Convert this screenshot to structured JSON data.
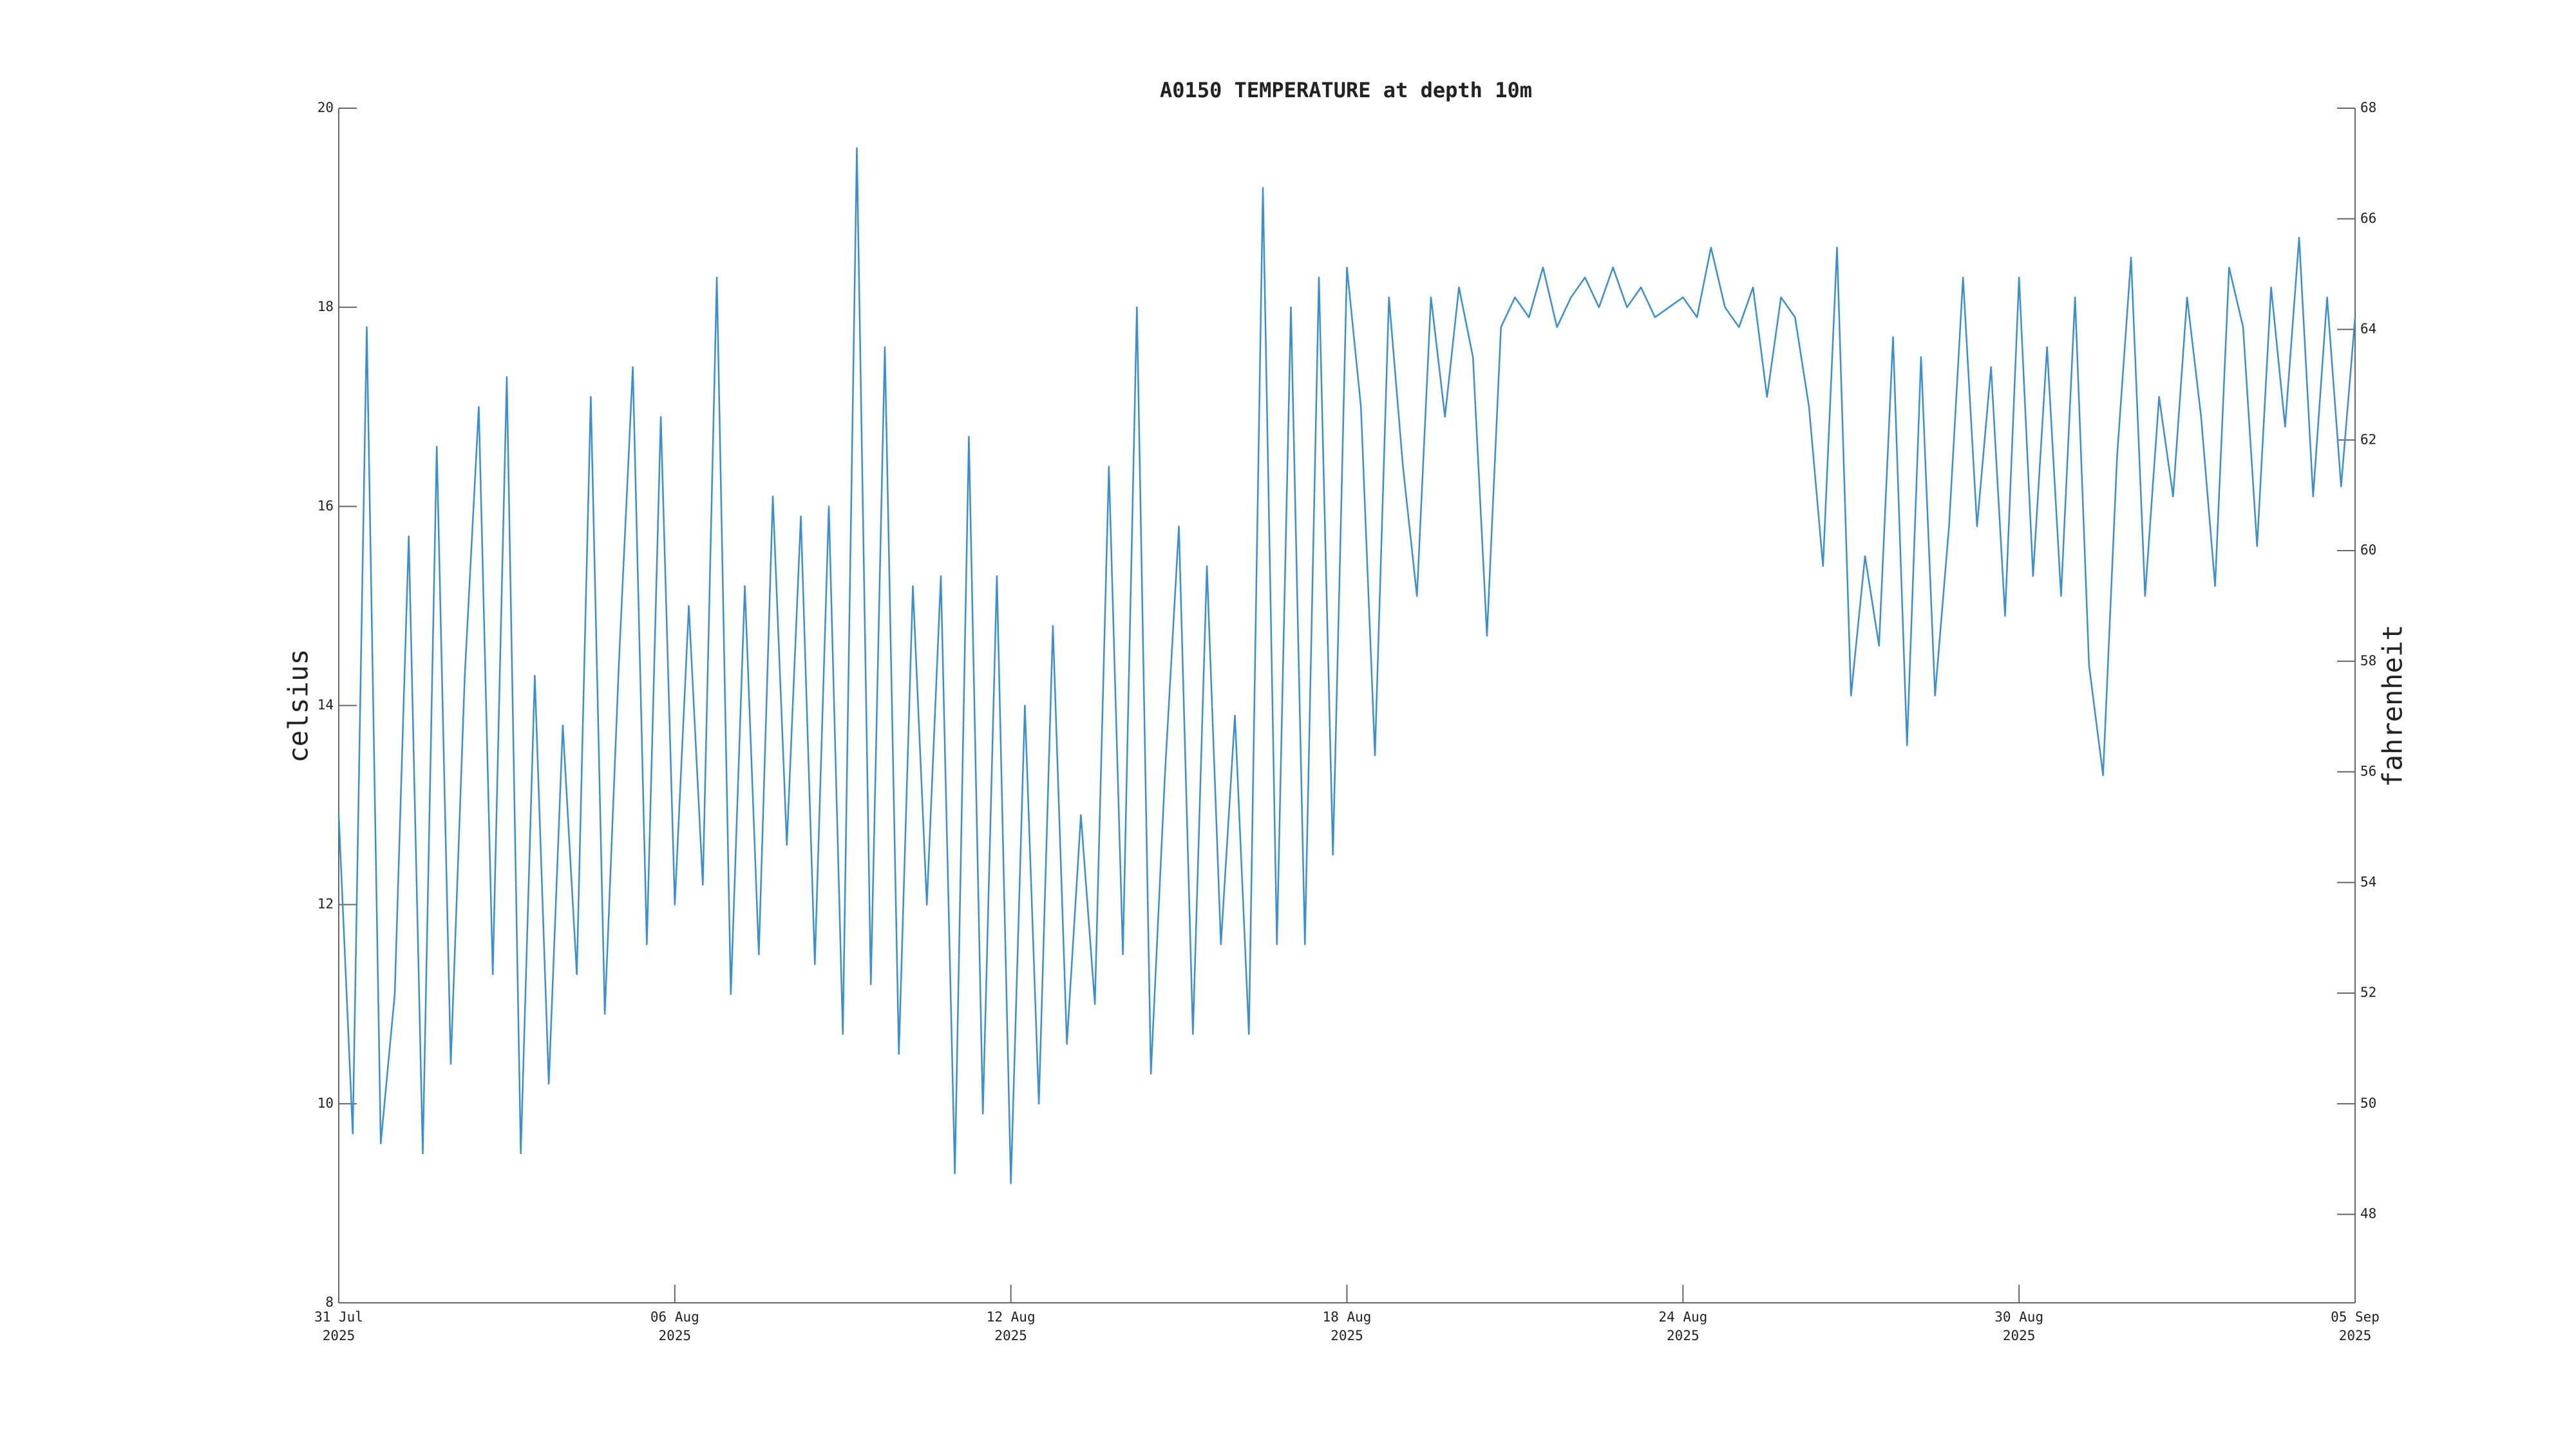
{
  "chart_data": {
    "type": "line",
    "title": "A0150 TEMPERATURE at depth 10m",
    "ylabel": "celsius",
    "y2label": "fahrenheit",
    "color": "#3a8fd0",
    "x": [
      0,
      0.25,
      0.5,
      0.75,
      1,
      1.25,
      1.5,
      1.75,
      2,
      2.25,
      2.5,
      2.75,
      3,
      3.25,
      3.5,
      3.75,
      4,
      4.25,
      4.5,
      4.75,
      5,
      5.25,
      5.5,
      5.75,
      6,
      6.25,
      6.5,
      6.75,
      7,
      7.25,
      7.5,
      7.75,
      8,
      8.25,
      8.5,
      8.75,
      9,
      9.25,
      9.5,
      9.75,
      10,
      10.25,
      10.5,
      10.75,
      11,
      11.25,
      11.5,
      11.75,
      12,
      12.25,
      12.5,
      12.75,
      13,
      13.25,
      13.5,
      13.75,
      14,
      14.25,
      14.5,
      14.75,
      15,
      15.25,
      15.5,
      15.75,
      16,
      16.25,
      16.5,
      16.75,
      17,
      17.25,
      17.5,
      17.75,
      18,
      18.25,
      18.5,
      18.75,
      19,
      19.25,
      19.5,
      19.75,
      20,
      20.25,
      20.5,
      20.75,
      21,
      21.25,
      21.5,
      21.75,
      22,
      22.25,
      22.5,
      22.75,
      23,
      23.25,
      23.5,
      23.75,
      24,
      24.25,
      24.5,
      24.75,
      25,
      25.25,
      25.5,
      25.75,
      26,
      26.25,
      26.5,
      26.75,
      27,
      27.25,
      27.5,
      27.75,
      28,
      28.25,
      28.5,
      28.75,
      29,
      29.25,
      29.5,
      29.75,
      30,
      30.25,
      30.5,
      30.75,
      31,
      31.25,
      31.5,
      31.75,
      32,
      32.25,
      32.5,
      32.75,
      33,
      33.25,
      33.5,
      33.75,
      34,
      34.25,
      34.5,
      34.75,
      35,
      35.25,
      35.5,
      35.75,
      36
    ],
    "values": [
      12.9,
      9.7,
      17.8,
      9.6,
      11.1,
      15.7,
      9.5,
      16.6,
      10.4,
      14.3,
      17.0,
      11.3,
      17.3,
      9.5,
      14.3,
      10.2,
      13.8,
      11.3,
      17.1,
      10.9,
      14.4,
      17.4,
      11.6,
      16.9,
      12.0,
      15.0,
      12.2,
      18.3,
      11.1,
      15.2,
      11.5,
      16.1,
      12.6,
      15.9,
      11.4,
      16.0,
      10.7,
      19.6,
      11.2,
      17.6,
      10.5,
      15.2,
      12.0,
      15.3,
      9.3,
      16.7,
      9.9,
      15.3,
      9.2,
      14.0,
      10.0,
      14.8,
      10.6,
      12.9,
      11.0,
      16.4,
      11.5,
      18.0,
      10.3,
      13.3,
      15.8,
      10.7,
      15.4,
      11.6,
      13.9,
      10.7,
      19.2,
      11.6,
      18.0,
      11.6,
      18.3,
      12.5,
      18.4,
      17.0,
      13.5,
      18.1,
      16.4,
      15.1,
      18.1,
      16.9,
      18.2,
      17.5,
      14.7,
      17.8,
      18.1,
      17.9,
      18.4,
      17.8,
      18.1,
      18.3,
      18.0,
      18.4,
      18.0,
      18.2,
      17.9,
      18.0,
      18.1,
      17.9,
      18.6,
      18.0,
      17.8,
      18.2,
      17.1,
      18.1,
      17.9,
      17.0,
      15.4,
      18.6,
      14.1,
      15.5,
      14.6,
      17.7,
      13.6,
      17.5,
      14.1,
      15.8,
      18.3,
      15.8,
      17.4,
      14.9,
      18.3,
      15.3,
      17.6,
      15.1,
      18.1,
      14.4,
      13.3,
      16.5,
      18.5,
      15.1,
      17.1,
      16.1,
      18.1,
      16.9,
      15.2,
      18.4,
      17.8,
      15.6,
      18.2,
      16.8,
      18.7,
      16.1,
      18.1,
      16.2,
      17.9
    ],
    "xlim": [
      0,
      36
    ],
    "xticks": [
      {
        "value": 0,
        "label": "31 Jul\n2025"
      },
      {
        "value": 6,
        "label": "06 Aug\n2025"
      },
      {
        "value": 12,
        "label": "12 Aug\n2025"
      },
      {
        "value": 18,
        "label": "18 Aug\n2025"
      },
      {
        "value": 24,
        "label": "24 Aug\n2025"
      },
      {
        "value": 30,
        "label": "30 Aug\n2025"
      },
      {
        "value": 36,
        "label": "05 Sep\n2025"
      }
    ],
    "ylim": [
      8,
      20
    ],
    "yticks": [
      8,
      10,
      12,
      14,
      16,
      18,
      20
    ],
    "y2lim": [
      46.4,
      68
    ],
    "y2ticks": [
      48,
      50,
      52,
      54,
      56,
      58,
      60,
      62,
      64,
      66,
      68
    ]
  }
}
